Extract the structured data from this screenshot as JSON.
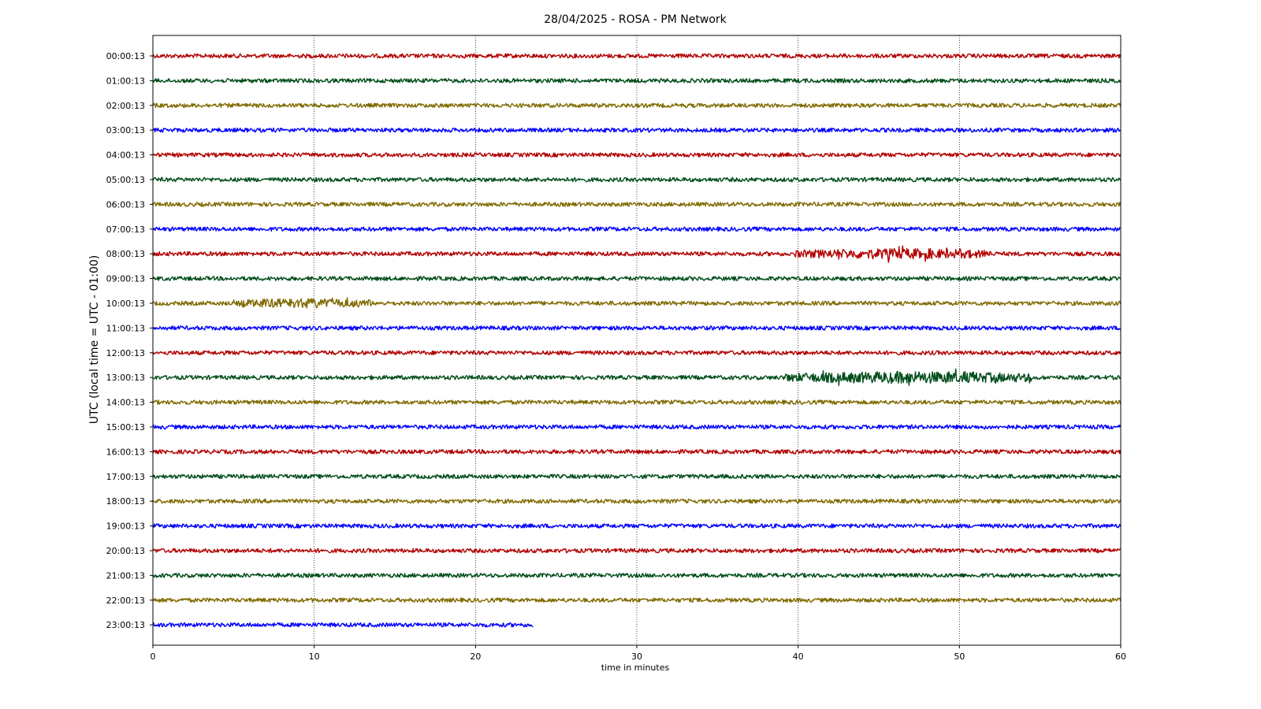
{
  "chart_data": {
    "type": "line",
    "title": "28/04/2025 - ROSA - PM Network",
    "xlabel": "time in minutes",
    "ylabel": "UTC (local time = UTC - 01:00)",
    "xlim": [
      0,
      60
    ],
    "xticks": [
      0,
      10,
      20,
      30,
      40,
      50,
      60
    ],
    "grid": "vertical dotted",
    "colors": [
      "#b20000",
      "#004d1a",
      "#7f6a00",
      "#0000ff"
    ],
    "rows": [
      {
        "label": "00:00:13",
        "color": "#b20000",
        "end_minute": 60
      },
      {
        "label": "01:00:13",
        "color": "#004d1a",
        "end_minute": 60
      },
      {
        "label": "02:00:13",
        "color": "#7f6a00",
        "end_minute": 60
      },
      {
        "label": "03:00:13",
        "color": "#0000ff",
        "end_minute": 60
      },
      {
        "label": "04:00:13",
        "color": "#b20000",
        "end_minute": 60
      },
      {
        "label": "05:00:13",
        "color": "#004d1a",
        "end_minute": 60
      },
      {
        "label": "06:00:13",
        "color": "#7f6a00",
        "end_minute": 60
      },
      {
        "label": "07:00:13",
        "color": "#0000ff",
        "end_minute": 60
      },
      {
        "label": "08:00:13",
        "color": "#b20000",
        "end_minute": 60,
        "events": [
          {
            "start": 39.8,
            "end": 52,
            "amplitude": 8
          }
        ]
      },
      {
        "label": "09:00:13",
        "color": "#004d1a",
        "end_minute": 60
      },
      {
        "label": "10:00:13",
        "color": "#7f6a00",
        "end_minute": 60,
        "events": [
          {
            "start": 5,
            "end": 13.5,
            "amplitude": 7
          }
        ]
      },
      {
        "label": "11:00:13",
        "color": "#0000ff",
        "end_minute": 60
      },
      {
        "label": "12:00:13",
        "color": "#b20000",
        "end_minute": 60
      },
      {
        "label": "13:00:13",
        "color": "#004d1a",
        "end_minute": 60,
        "events": [
          {
            "start": 39.2,
            "end": 54.5,
            "amplitude": 10
          }
        ]
      },
      {
        "label": "14:00:13",
        "color": "#7f6a00",
        "end_minute": 60
      },
      {
        "label": "15:00:13",
        "color": "#0000ff",
        "end_minute": 60
      },
      {
        "label": "16:00:13",
        "color": "#b20000",
        "end_minute": 60
      },
      {
        "label": "17:00:13",
        "color": "#004d1a",
        "end_minute": 60
      },
      {
        "label": "18:00:13",
        "color": "#7f6a00",
        "end_minute": 60
      },
      {
        "label": "19:00:13",
        "color": "#0000ff",
        "end_minute": 60
      },
      {
        "label": "20:00:13",
        "color": "#b20000",
        "end_minute": 60
      },
      {
        "label": "21:00:13",
        "color": "#004d1a",
        "end_minute": 60
      },
      {
        "label": "22:00:13",
        "color": "#7f6a00",
        "end_minute": 60
      },
      {
        "label": "23:00:13",
        "color": "#0000ff",
        "end_minute": 23.6
      }
    ]
  }
}
